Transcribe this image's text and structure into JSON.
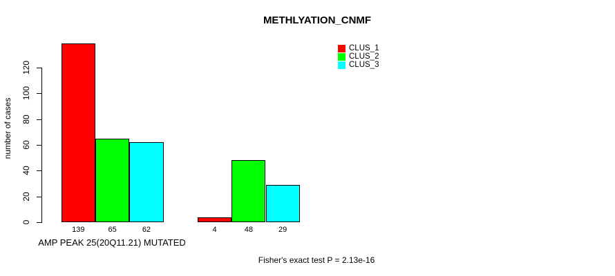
{
  "chart_data": {
    "type": "bar",
    "title": "METHLYATION_CNMF",
    "ylabel": "number of cases",
    "xlabel": "AMP PEAK 25(20Q11.21) MUTATED",
    "annotation": "Fisher's exact test P = 2.13e-16",
    "series": [
      {
        "name": "CLUS_1",
        "color": "#FF0000"
      },
      {
        "name": "CLUS_2",
        "color": "#00FF00"
      },
      {
        "name": "CLUS_3",
        "color": "#00FFFF"
      }
    ],
    "groups": [
      {
        "values": [
          139,
          65,
          62
        ]
      },
      {
        "values": [
          4,
          48,
          29
        ]
      }
    ],
    "bar_value_labels": [
      [
        "139",
        "65",
        "62"
      ],
      [
        "4",
        "48",
        "29"
      ]
    ],
    "y_ticks": [
      0,
      20,
      40,
      60,
      80,
      100,
      120
    ],
    "ylim": [
      0,
      139
    ],
    "grid": false,
    "legend_position": "top-right",
    "background_color": "#FFFFFF",
    "axis_color": "#000000"
  }
}
